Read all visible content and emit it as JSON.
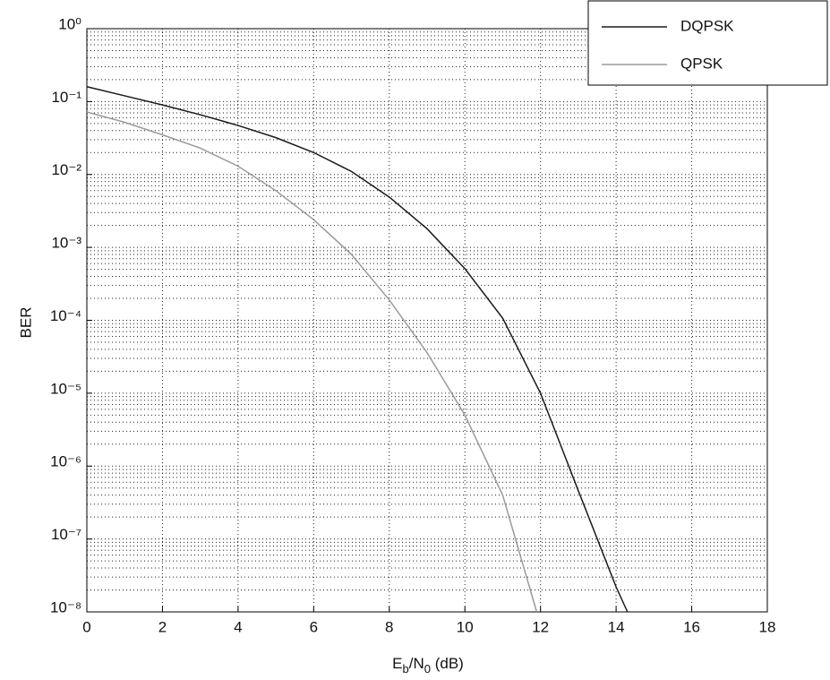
{
  "chart_data": {
    "type": "line",
    "x_label": [
      "E",
      "b",
      "/N",
      "0",
      " (dB)"
    ],
    "y_label": "BER",
    "y_log": true,
    "grid": true,
    "minor_grid": true,
    "legend": "top-right",
    "xlim": [
      0,
      18
    ],
    "xticks": [
      0,
      2,
      4,
      6,
      8,
      10,
      12,
      14,
      16,
      18
    ],
    "ylim": [
      1e-08,
      1
    ],
    "yticks": [
      {
        "value": 1,
        "label": "10⁰"
      },
      {
        "value": 0.1,
        "label": "10⁻¹"
      },
      {
        "value": 0.01,
        "label": "10⁻²"
      },
      {
        "value": 0.001,
        "label": "10⁻³"
      },
      {
        "value": 0.0001,
        "label": "10⁻⁴"
      },
      {
        "value": 1e-05,
        "label": "10⁻⁵"
      },
      {
        "value": 1e-06,
        "label": "10⁻⁶"
      },
      {
        "value": 1e-07,
        "label": "10⁻⁷"
      },
      {
        "value": 1e-08,
        "label": "10⁻⁸"
      }
    ],
    "series": [
      {
        "name": "DQPSK",
        "color": "#1a1a1a",
        "x": [
          0,
          1,
          2,
          3,
          4,
          5,
          6,
          7,
          8,
          9,
          10,
          11,
          12,
          13,
          14,
          14.3
        ],
        "values": [
          0.16,
          0.12,
          0.09,
          0.066,
          0.047,
          0.032,
          0.02,
          0.011,
          0.0049,
          0.0018,
          0.00051,
          0.000107,
          1e-05,
          4.6e-07,
          2.2e-08,
          1e-08
        ]
      },
      {
        "name": "QPSK",
        "color": "#9a9a9a",
        "x": [
          0,
          1,
          2,
          3,
          4,
          5,
          6,
          7,
          8,
          9,
          10,
          11,
          11.9
        ],
        "values": [
          0.072,
          0.052,
          0.035,
          0.023,
          0.013,
          0.006,
          0.0024,
          0.0008,
          0.00019,
          3.6e-05,
          5e-06,
          4e-07,
          1e-08
        ]
      }
    ]
  }
}
